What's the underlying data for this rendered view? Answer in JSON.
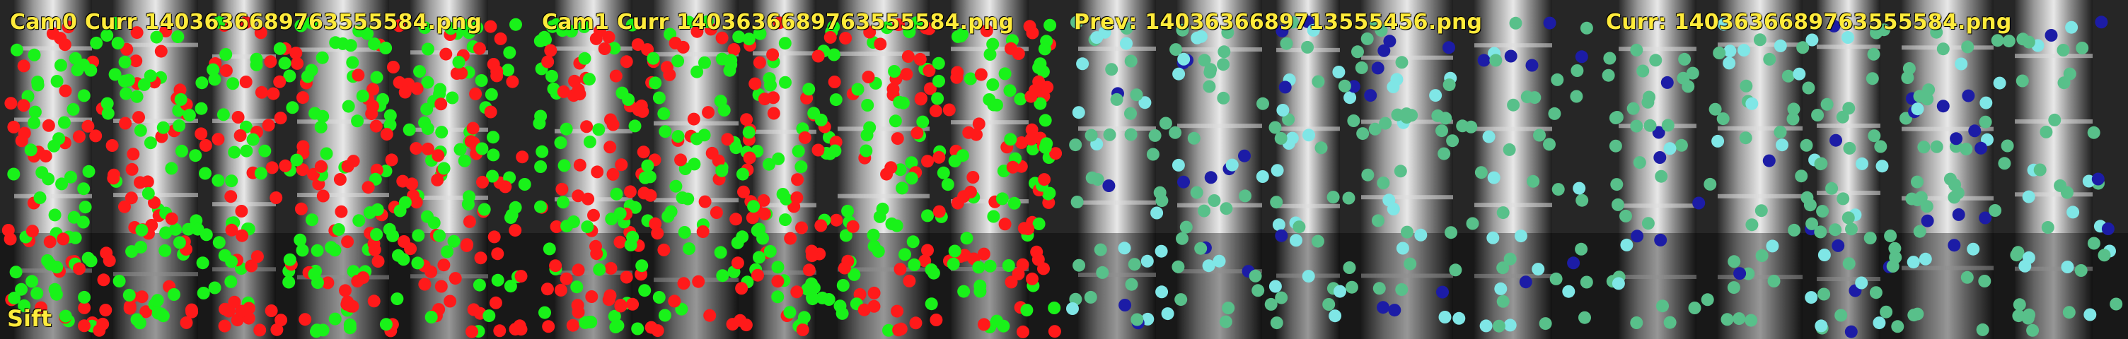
{
  "panels": [
    {
      "title": "Cam0 Curr 1403636689763555584.png",
      "type": "matches"
    },
    {
      "title": "Cam1 Curr 1403636689763555584.png",
      "type": "matches"
    },
    {
      "title": "Prev: 1403636689713555456.png",
      "type": "tracks"
    },
    {
      "title": "Curr: 1403636689763555584.png",
      "type": "tracks"
    }
  ],
  "corner_label": "Sift",
  "colors": {
    "match_red": "#ff1a1a",
    "match_green": "#19f219",
    "track_green": "#58c08a",
    "track_cyan": "#7fe6e6",
    "track_blue": "#1c1ca6",
    "text_yellow": "#ffeb3b"
  }
}
